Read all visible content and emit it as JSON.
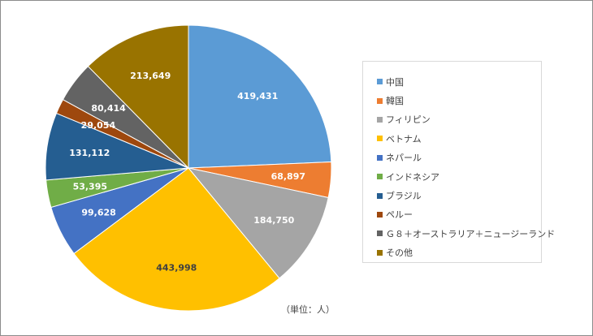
{
  "chart_data": {
    "type": "pie",
    "title": "",
    "unit_note": "（単位：人）",
    "legend_position": "right",
    "start_angle_deg": 0,
    "direction": "clockwise",
    "slices": [
      {
        "label": "中国",
        "value": 419431,
        "display": "419,431",
        "color": "#5B9BD5",
        "label_color": "#ffffff"
      },
      {
        "label": "韓国",
        "value": 68897,
        "display": "68,897",
        "color": "#ED7D31",
        "label_color": "#ffffff"
      },
      {
        "label": "フィリピン",
        "value": 184750,
        "display": "184,750",
        "color": "#A5A5A5",
        "label_color": "#ffffff"
      },
      {
        "label": "ベトナム",
        "value": 443998,
        "display": "443,998",
        "color": "#FFC000",
        "label_color": "#404040"
      },
      {
        "label": "ネパール",
        "value": 99628,
        "display": "99,628",
        "color": "#4472C4",
        "label_color": "#ffffff"
      },
      {
        "label": "インドネシア",
        "value": 53395,
        "display": "53,395",
        "color": "#70AD47",
        "label_color": "#ffffff"
      },
      {
        "label": "ブラジル",
        "value": 131112,
        "display": "131,112",
        "color": "#255E91",
        "label_color": "#ffffff"
      },
      {
        "label": "ペルー",
        "value": 29054,
        "display": "29,054",
        "color": "#9E480E",
        "label_color": "#ffffff"
      },
      {
        "label": "Ｇ８＋オーストラリア＋ニュージーランド",
        "value": 80414,
        "display": "80,414",
        "color": "#636363",
        "label_color": "#ffffff"
      },
      {
        "label": "その他",
        "value": 213649,
        "display": "213,649",
        "color": "#997300",
        "label_color": "#ffffff"
      }
    ]
  }
}
